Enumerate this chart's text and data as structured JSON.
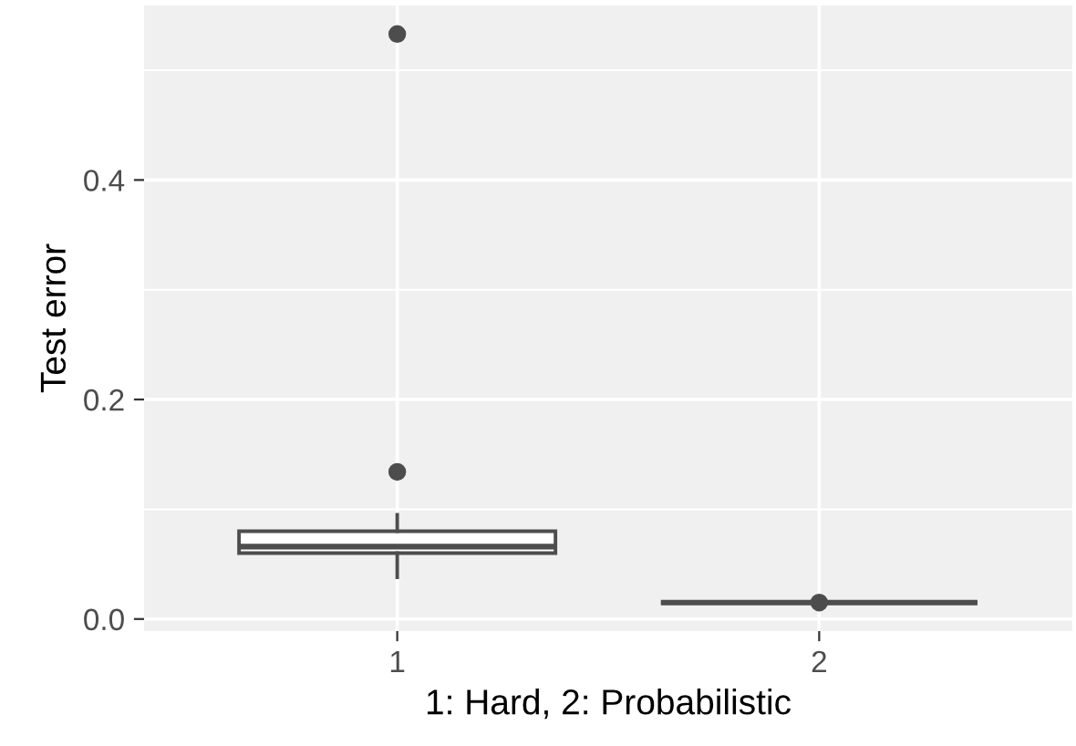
{
  "chart_data": {
    "type": "box",
    "xlabel": "1: Hard, 2: Probabilistic",
    "ylabel": "Test error",
    "categories": [
      "1",
      "2"
    ],
    "boxes": [
      {
        "low": 0.038,
        "q1": 0.06,
        "median": 0.066,
        "q3": 0.08,
        "high": 0.095,
        "outliers": [
          0.134,
          0.533
        ]
      },
      {
        "low": 0.015,
        "q1": 0.015,
        "median": 0.015,
        "q3": 0.015,
        "high": 0.015,
        "outliers": [
          0.015
        ]
      }
    ],
    "color": "#4d4d4d",
    "ylim": [
      -0.011,
      0.559
    ],
    "yticks": [
      {
        "value": 0.0,
        "label": "0.0"
      },
      {
        "value": 0.1,
        "label": null
      },
      {
        "value": 0.2,
        "label": "0.2"
      },
      {
        "value": 0.3,
        "label": null
      },
      {
        "value": 0.4,
        "label": "0.4"
      },
      {
        "value": 0.5,
        "label": null
      }
    ],
    "grid": true
  }
}
